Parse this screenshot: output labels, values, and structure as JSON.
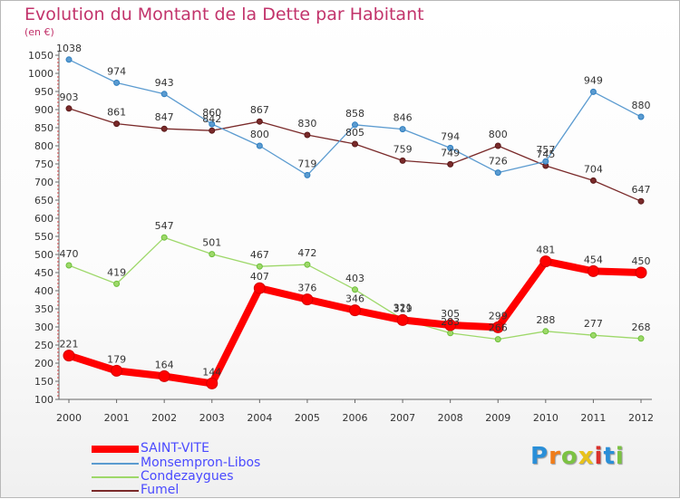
{
  "title": "Evolution du Montant de la Dette par Habitant",
  "subtitle": "(en €)",
  "logo": {
    "text": "Proxiti",
    "colors": [
      "#2a8fd8",
      "#f07d1a",
      "#7cc243",
      "#e8c21a",
      "#d9302c",
      "#2a8fd8",
      "#7cc243"
    ]
  },
  "chart_data": {
    "type": "line",
    "x": [
      "2000",
      "2001",
      "2002",
      "2003",
      "2004",
      "2005",
      "2006",
      "2007",
      "2008",
      "2009",
      "2010",
      "2011",
      "2012"
    ],
    "ylim": [
      100,
      1050
    ],
    "yticks": [
      100,
      150,
      200,
      250,
      300,
      350,
      400,
      450,
      500,
      550,
      600,
      650,
      700,
      750,
      800,
      850,
      900,
      950,
      1000,
      1050
    ],
    "grid": false,
    "legend_placement": "bottom-left",
    "series": [
      {
        "name": "SAINT-VITE",
        "color": "#ff0000",
        "values": [
          221,
          179,
          164,
          144,
          407,
          376,
          346,
          319,
          305,
          299,
          481,
          454,
          450
        ]
      },
      {
        "name": "Monsempron-Libos",
        "color": "#5b9bd0",
        "values": [
          1038,
          974,
          943,
          860,
          800,
          719,
          858,
          846,
          794,
          726,
          757,
          949,
          880
        ]
      },
      {
        "name": "Condezaygues",
        "color": "#9ed86a",
        "values": [
          470,
          419,
          547,
          501,
          467,
          472,
          403,
          321,
          283,
          266,
          288,
          277,
          268
        ]
      },
      {
        "name": "Fumel",
        "color": "#7a2a2a",
        "values": [
          903,
          861,
          847,
          842,
          867,
          830,
          805,
          759,
          749,
          800,
          745,
          704,
          647
        ]
      }
    ]
  }
}
